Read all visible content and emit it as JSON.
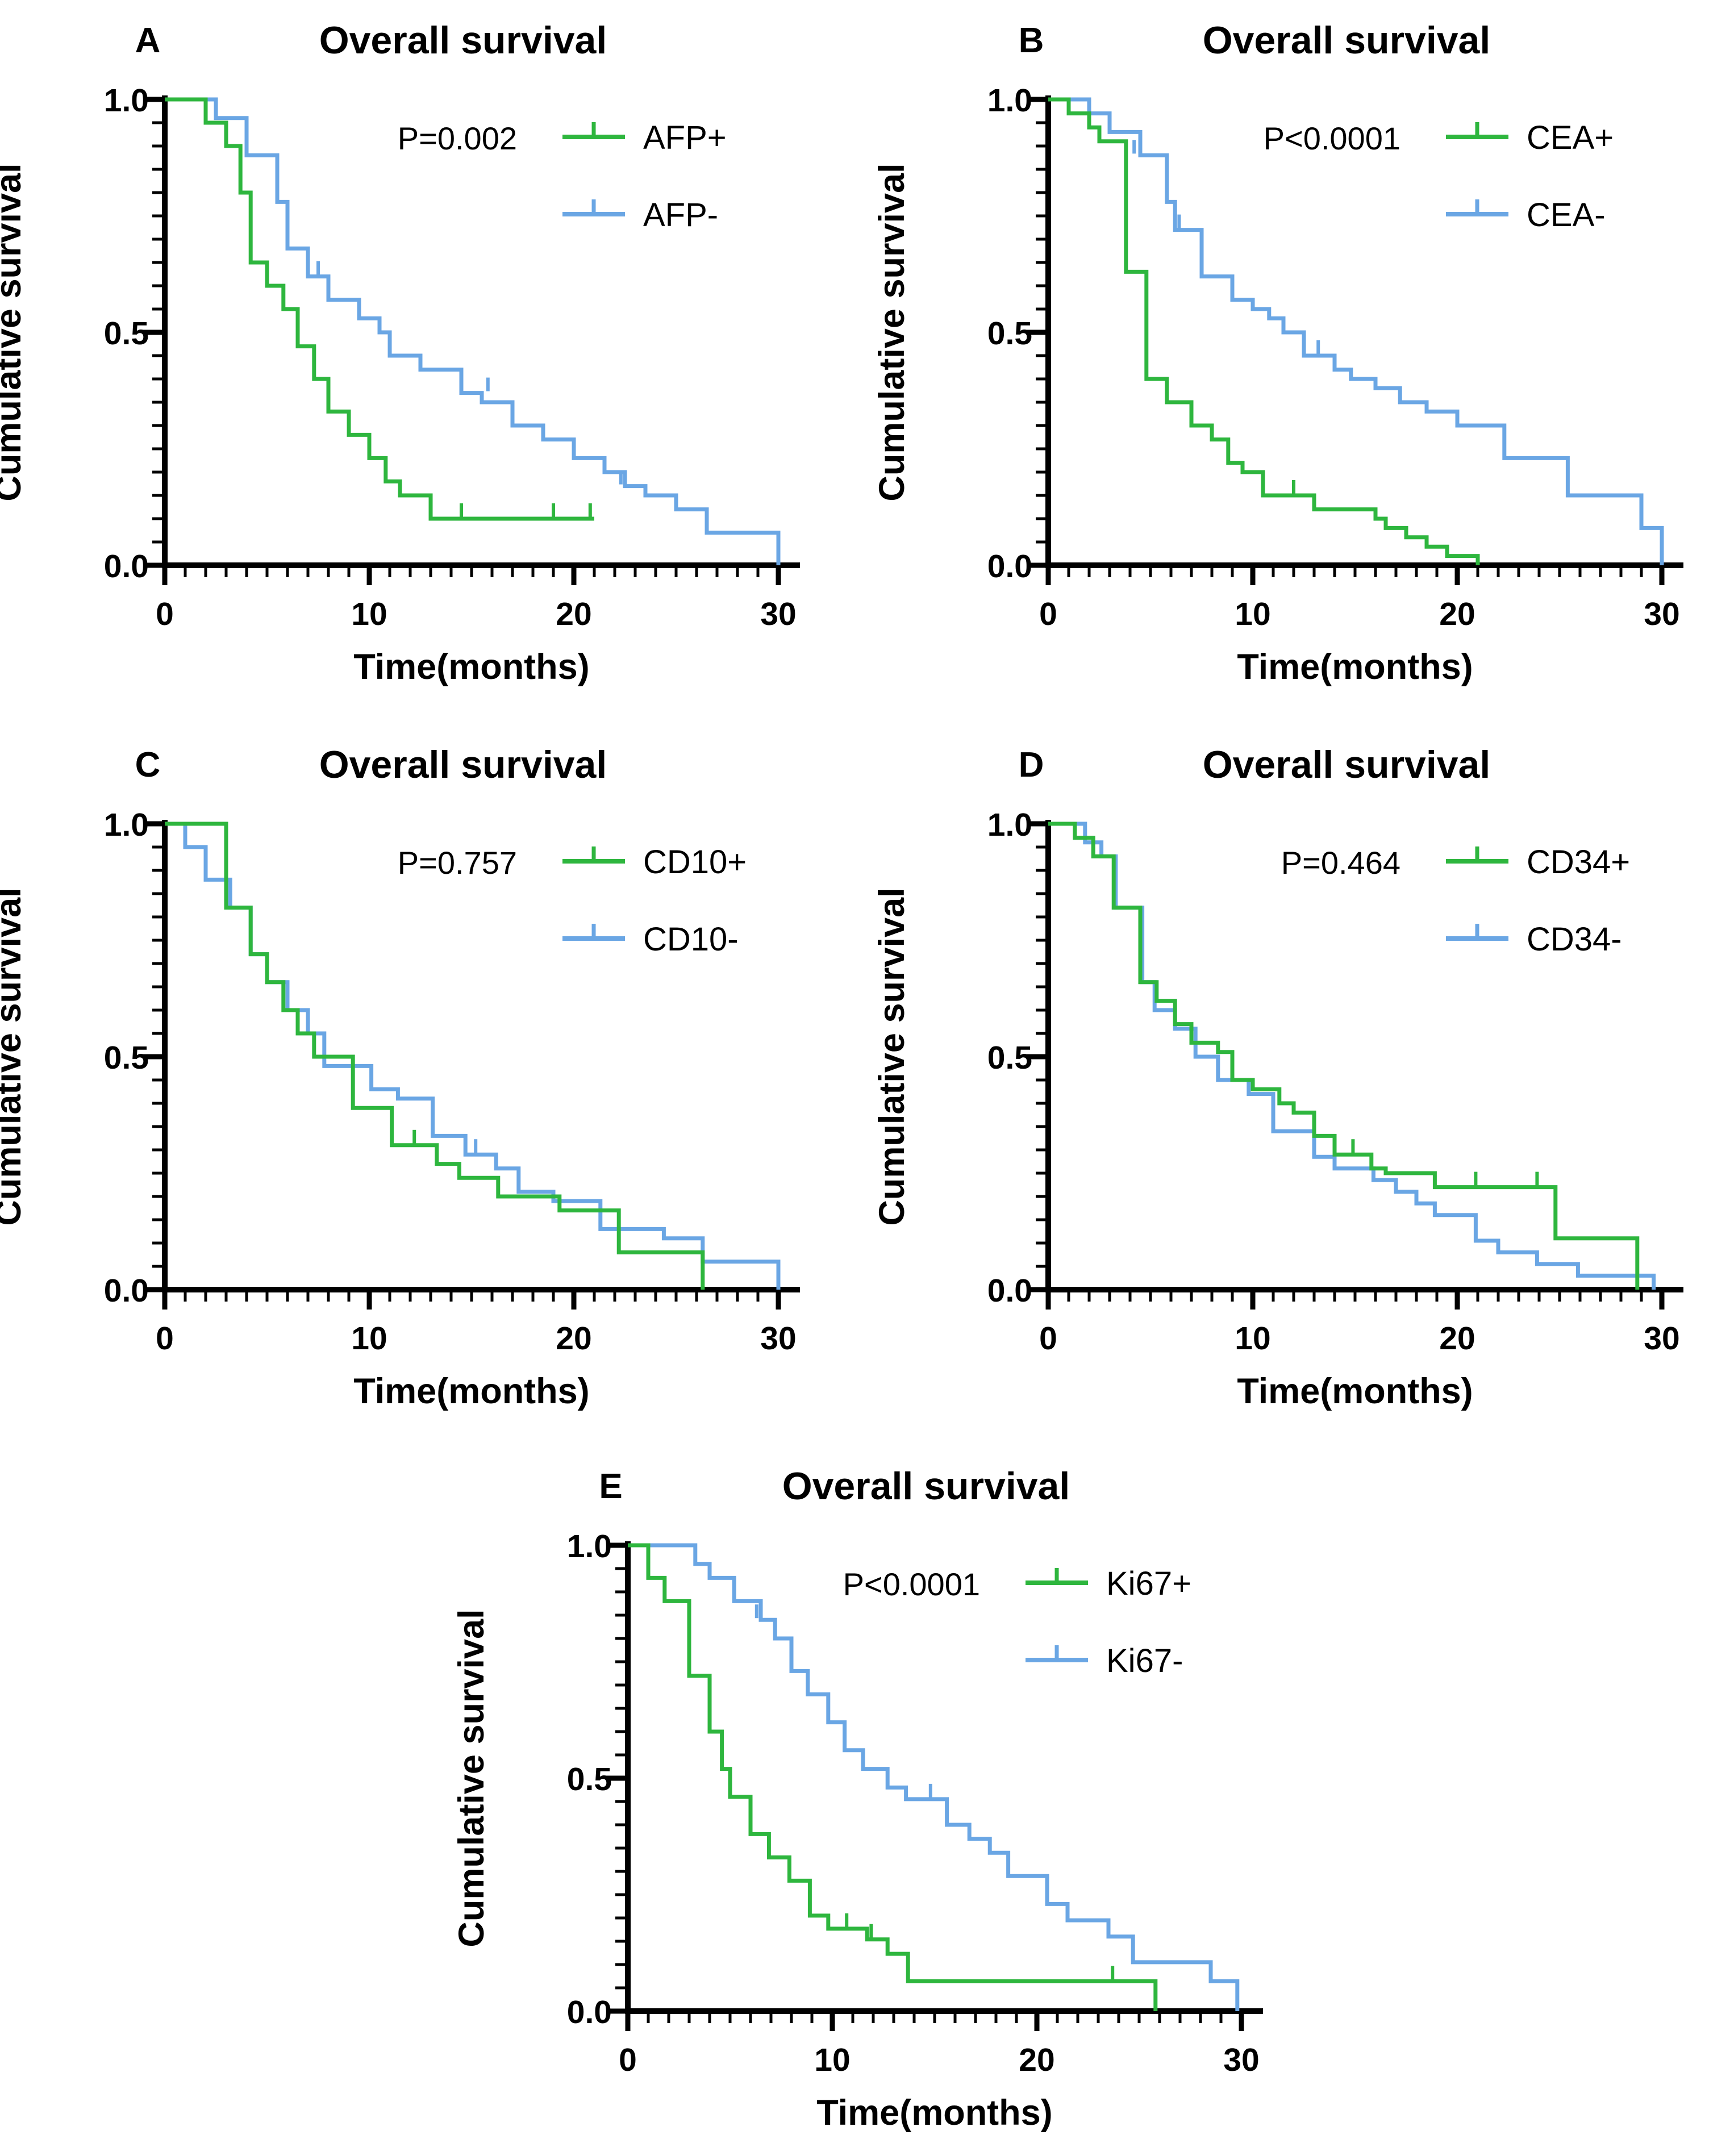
{
  "figure": {
    "background": "#ffffff",
    "axis_color": "#000000",
    "green": "#2eb63e",
    "blue": "#6aa6e4"
  },
  "chart_data": [
    {
      "type": "line",
      "subtype": "kaplan-meier-step",
      "panel": "A",
      "title": "Overall survival",
      "p_value": "P=0.002",
      "xlabel": "Time(months)",
      "ylabel": "Cumulative survival",
      "xlim": [
        0,
        31
      ],
      "ylim": [
        0,
        1
      ],
      "xticks": [
        0,
        10,
        20,
        30
      ],
      "xtick_labels": [
        "0",
        "10",
        "20",
        "30"
      ],
      "yticks": [
        0,
        0.5,
        1.0
      ],
      "ytick_labels": [
        "0.0",
        "0.5",
        "1.0"
      ],
      "x_minor_tick_every": 1,
      "y_minor_tick_every": 0.05,
      "grid": false,
      "legend_position": "upper-right-inside",
      "series": [
        {
          "name": "AFP+",
          "color_key": "green",
          "steps": [
            [
              0,
              1.0
            ],
            [
              2,
              0.95
            ],
            [
              3,
              0.9
            ],
            [
              3.7,
              0.8
            ],
            [
              4.2,
              0.65
            ],
            [
              5,
              0.6
            ],
            [
              5.8,
              0.55
            ],
            [
              6.5,
              0.47
            ],
            [
              7.3,
              0.4
            ],
            [
              8,
              0.33
            ],
            [
              9,
              0.28
            ],
            [
              10,
              0.23
            ],
            [
              10.8,
              0.18
            ],
            [
              11.5,
              0.15
            ],
            [
              13,
              0.1
            ],
            [
              21,
              0.1
            ]
          ],
          "censors": [
            [
              14.5,
              0.1
            ],
            [
              19,
              0.1
            ],
            [
              20.8,
              0.1
            ]
          ]
        },
        {
          "name": "AFP-",
          "color_key": "blue",
          "steps": [
            [
              0,
              1.0
            ],
            [
              2.5,
              0.96
            ],
            [
              4,
              0.88
            ],
            [
              5.5,
              0.78
            ],
            [
              6,
              0.68
            ],
            [
              7,
              0.62
            ],
            [
              8,
              0.57
            ],
            [
              9.5,
              0.53
            ],
            [
              10.5,
              0.5
            ],
            [
              11,
              0.45
            ],
            [
              12.5,
              0.42
            ],
            [
              14.5,
              0.37
            ],
            [
              15.5,
              0.35
            ],
            [
              17,
              0.3
            ],
            [
              18.5,
              0.27
            ],
            [
              20,
              0.23
            ],
            [
              21.5,
              0.2
            ],
            [
              22.5,
              0.17
            ],
            [
              23.5,
              0.15
            ],
            [
              25,
              0.12
            ],
            [
              26.5,
              0.07
            ],
            [
              30,
              0.0
            ]
          ],
          "censors": [
            [
              7.5,
              0.62
            ],
            [
              15.8,
              0.37
            ],
            [
              22.3,
              0.17
            ]
          ]
        }
      ]
    },
    {
      "type": "line",
      "subtype": "kaplan-meier-step",
      "panel": "B",
      "title": "Overall survival",
      "p_value": "P<0.0001",
      "xlabel": "Time(months)",
      "ylabel": "Cumulative survival",
      "xlim": [
        0,
        31
      ],
      "ylim": [
        0,
        1
      ],
      "xticks": [
        0,
        10,
        20,
        30
      ],
      "xtick_labels": [
        "0",
        "10",
        "20",
        "30"
      ],
      "yticks": [
        0,
        0.5,
        1.0
      ],
      "ytick_labels": [
        "0.0",
        "0.5",
        "1.0"
      ],
      "x_minor_tick_every": 1,
      "y_minor_tick_every": 0.05,
      "grid": false,
      "legend_position": "upper-right-inside",
      "series": [
        {
          "name": "CEA+",
          "color_key": "green",
          "steps": [
            [
              0,
              1.0
            ],
            [
              1,
              0.97
            ],
            [
              2,
              0.94
            ],
            [
              2.5,
              0.91
            ],
            [
              3.8,
              0.63
            ],
            [
              4.8,
              0.4
            ],
            [
              5.8,
              0.35
            ],
            [
              7,
              0.3
            ],
            [
              8,
              0.27
            ],
            [
              8.8,
              0.22
            ],
            [
              9.5,
              0.2
            ],
            [
              10.5,
              0.15
            ],
            [
              13,
              0.12
            ],
            [
              16,
              0.1
            ],
            [
              16.5,
              0.08
            ],
            [
              17.5,
              0.06
            ],
            [
              18.5,
              0.04
            ],
            [
              19.5,
              0.02
            ],
            [
              21,
              0.0
            ]
          ],
          "censors": [
            [
              12,
              0.15
            ]
          ]
        },
        {
          "name": "CEA-",
          "color_key": "blue",
          "steps": [
            [
              0,
              1.0
            ],
            [
              2,
              0.97
            ],
            [
              3,
              0.93
            ],
            [
              4.5,
              0.88
            ],
            [
              5.8,
              0.78
            ],
            [
              6.2,
              0.72
            ],
            [
              7.5,
              0.62
            ],
            [
              9,
              0.57
            ],
            [
              10,
              0.55
            ],
            [
              10.8,
              0.53
            ],
            [
              11.5,
              0.5
            ],
            [
              12.5,
              0.45
            ],
            [
              14,
              0.42
            ],
            [
              14.8,
              0.4
            ],
            [
              16,
              0.38
            ],
            [
              17.2,
              0.35
            ],
            [
              18.5,
              0.33
            ],
            [
              20,
              0.3
            ],
            [
              22.3,
              0.23
            ],
            [
              25.4,
              0.15
            ],
            [
              29,
              0.08
            ],
            [
              30,
              0.0
            ]
          ],
          "censors": [
            [
              4.2,
              0.88
            ],
            [
              6.4,
              0.72
            ],
            [
              13.2,
              0.45
            ]
          ]
        }
      ]
    },
    {
      "type": "line",
      "subtype": "kaplan-meier-step",
      "panel": "C",
      "title": "Overall survival",
      "p_value": "P=0.757",
      "xlabel": "Time(months)",
      "ylabel": "Cumulative survival",
      "xlim": [
        0,
        31
      ],
      "ylim": [
        0,
        1
      ],
      "xticks": [
        0,
        10,
        20,
        30
      ],
      "xtick_labels": [
        "0",
        "10",
        "20",
        "30"
      ],
      "yticks": [
        0,
        0.5,
        1.0
      ],
      "ytick_labels": [
        "0.0",
        "0.5",
        "1.0"
      ],
      "x_minor_tick_every": 1,
      "y_minor_tick_every": 0.05,
      "grid": false,
      "legend_position": "upper-right-inside",
      "series": [
        {
          "name": "CD10+",
          "color_key": "green",
          "steps": [
            [
              0,
              1.0
            ],
            [
              3,
              0.82
            ],
            [
              4.2,
              0.72
            ],
            [
              5,
              0.66
            ],
            [
              5.8,
              0.6
            ],
            [
              6.5,
              0.55
            ],
            [
              7.3,
              0.5
            ],
            [
              9.2,
              0.39
            ],
            [
              11.1,
              0.31
            ],
            [
              13.3,
              0.27
            ],
            [
              14.4,
              0.24
            ],
            [
              16.3,
              0.2
            ],
            [
              19.3,
              0.17
            ],
            [
              22.2,
              0.08
            ],
            [
              26.3,
              0.0
            ]
          ],
          "censors": [
            [
              12.2,
              0.31
            ]
          ]
        },
        {
          "name": "CD10-",
          "color_key": "blue",
          "steps": [
            [
              0,
              1.0
            ],
            [
              1,
              0.95
            ],
            [
              2,
              0.88
            ],
            [
              3.2,
              0.82
            ],
            [
              4.2,
              0.72
            ],
            [
              5,
              0.66
            ],
            [
              6,
              0.6
            ],
            [
              7,
              0.55
            ],
            [
              7.8,
              0.48
            ],
            [
              10.1,
              0.43
            ],
            [
              11.4,
              0.41
            ],
            [
              13.1,
              0.33
            ],
            [
              14.7,
              0.29
            ],
            [
              16.2,
              0.26
            ],
            [
              17.3,
              0.21
            ],
            [
              19,
              0.19
            ],
            [
              21.3,
              0.13
            ],
            [
              24.4,
              0.11
            ],
            [
              26.3,
              0.06
            ],
            [
              30,
              0.0
            ]
          ],
          "censors": [
            [
              15.2,
              0.29
            ]
          ]
        }
      ]
    },
    {
      "type": "line",
      "subtype": "kaplan-meier-step",
      "panel": "D",
      "title": "Overall survival",
      "p_value": "P=0.464",
      "xlabel": "Time(months)",
      "ylabel": "Cumulative survival",
      "xlim": [
        0,
        31
      ],
      "ylim": [
        0,
        1
      ],
      "xticks": [
        0,
        10,
        20,
        30
      ],
      "xtick_labels": [
        "0",
        "10",
        "20",
        "30"
      ],
      "yticks": [
        0,
        0.5,
        1.0
      ],
      "ytick_labels": [
        "0.0",
        "0.5",
        "1.0"
      ],
      "x_minor_tick_every": 1,
      "y_minor_tick_every": 0.05,
      "grid": false,
      "legend_position": "upper-right-inside",
      "series": [
        {
          "name": "CD34+",
          "color_key": "green",
          "steps": [
            [
              0,
              1.0
            ],
            [
              1.3,
              0.97
            ],
            [
              2.2,
              0.93
            ],
            [
              3.2,
              0.82
            ],
            [
              4.5,
              0.66
            ],
            [
              5.3,
              0.62
            ],
            [
              6.2,
              0.57
            ],
            [
              7,
              0.53
            ],
            [
              8.3,
              0.51
            ],
            [
              9,
              0.45
            ],
            [
              10,
              0.43
            ],
            [
              11.3,
              0.4
            ],
            [
              12,
              0.38
            ],
            [
              13,
              0.33
            ],
            [
              14,
              0.29
            ],
            [
              15.8,
              0.26
            ],
            [
              16.5,
              0.25
            ],
            [
              18.9,
              0.22
            ],
            [
              24.8,
              0.11
            ],
            [
              28.8,
              0.0
            ]
          ],
          "censors": [
            [
              14.9,
              0.29
            ],
            [
              20.9,
              0.22
            ],
            [
              23.9,
              0.22
            ]
          ]
        },
        {
          "name": "CD34-",
          "color_key": "blue",
          "steps": [
            [
              0,
              1.0
            ],
            [
              1.8,
              0.96
            ],
            [
              2.6,
              0.93
            ],
            [
              3.3,
              0.82
            ],
            [
              4.6,
              0.66
            ],
            [
              5.2,
              0.6
            ],
            [
              6.2,
              0.56
            ],
            [
              7.2,
              0.5
            ],
            [
              8.3,
              0.45
            ],
            [
              9.8,
              0.42
            ],
            [
              11,
              0.34
            ],
            [
              13,
              0.285
            ],
            [
              14,
              0.26
            ],
            [
              15.9,
              0.235
            ],
            [
              17,
              0.21
            ],
            [
              18,
              0.185
            ],
            [
              18.9,
              0.16
            ],
            [
              20.9,
              0.105
            ],
            [
              22,
              0.08
            ],
            [
              23.9,
              0.055
            ],
            [
              25.9,
              0.03
            ],
            [
              29.6,
              0.0
            ]
          ],
          "censors": []
        }
      ]
    },
    {
      "type": "line",
      "subtype": "kaplan-meier-step",
      "panel": "E",
      "title": "Overall survival",
      "p_value": "P<0.0001",
      "xlabel": "Time(months)",
      "ylabel": "Cumulative survival",
      "xlim": [
        0,
        31
      ],
      "ylim": [
        0,
        1
      ],
      "xticks": [
        0,
        10,
        20,
        30
      ],
      "xtick_labels": [
        "0",
        "10",
        "20",
        "30"
      ],
      "yticks": [
        0,
        0.5,
        1.0
      ],
      "ytick_labels": [
        "0.0",
        "0.5",
        "1.0"
      ],
      "x_minor_tick_every": 1,
      "y_minor_tick_every": 0.05,
      "grid": false,
      "legend_position": "upper-right-inside",
      "series": [
        {
          "name": "Ki67+",
          "color_key": "green",
          "steps": [
            [
              0,
              1.0
            ],
            [
              1,
              0.93
            ],
            [
              1.8,
              0.88
            ],
            [
              3,
              0.72
            ],
            [
              4,
              0.6
            ],
            [
              4.6,
              0.52
            ],
            [
              5,
              0.46
            ],
            [
              6,
              0.38
            ],
            [
              6.9,
              0.33
            ],
            [
              7.9,
              0.28
            ],
            [
              8.9,
              0.205
            ],
            [
              9.8,
              0.177
            ],
            [
              11.7,
              0.154
            ],
            [
              12.7,
              0.123
            ],
            [
              13.7,
              0.064
            ],
            [
              25.8,
              0.0
            ]
          ],
          "censors": [
            [
              10.7,
              0.177
            ],
            [
              11.9,
              0.154
            ],
            [
              23.7,
              0.064
            ]
          ]
        },
        {
          "name": "Ki67-",
          "color_key": "blue",
          "steps": [
            [
              0,
              1.0
            ],
            [
              3.3,
              0.96
            ],
            [
              4,
              0.93
            ],
            [
              5.2,
              0.88
            ],
            [
              6.5,
              0.84
            ],
            [
              7.2,
              0.8
            ],
            [
              8,
              0.73
            ],
            [
              8.8,
              0.68
            ],
            [
              9.8,
              0.62
            ],
            [
              10.6,
              0.56
            ],
            [
              11.5,
              0.52
            ],
            [
              12.7,
              0.48
            ],
            [
              13.6,
              0.455
            ],
            [
              15.6,
              0.4
            ],
            [
              16.7,
              0.37
            ],
            [
              17.7,
              0.34
            ],
            [
              18.6,
              0.29
            ],
            [
              20.5,
              0.23
            ],
            [
              21.5,
              0.195
            ],
            [
              23.5,
              0.16
            ],
            [
              24.7,
              0.105
            ],
            [
              28.5,
              0.064
            ],
            [
              29.8,
              0.0
            ]
          ],
          "censors": [
            [
              6.3,
              0.84
            ],
            [
              14.8,
              0.455
            ]
          ]
        }
      ]
    }
  ]
}
